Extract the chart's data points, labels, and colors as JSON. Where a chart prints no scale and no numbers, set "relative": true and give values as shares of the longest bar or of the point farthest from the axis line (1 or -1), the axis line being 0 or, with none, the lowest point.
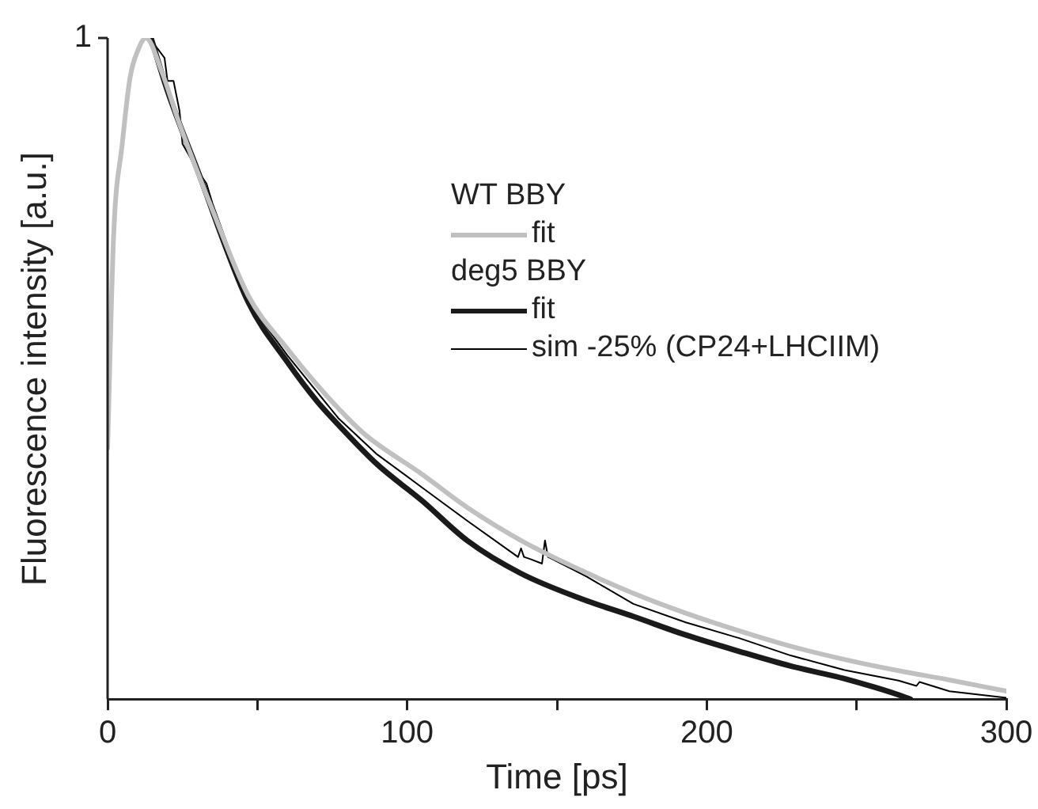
{
  "chart_data": {
    "type": "line",
    "xlabel": "Time [ps]",
    "ylabel": "Fluorescence intensity [a.u.]",
    "relative": true,
    "xlim": [
      0,
      300
    ],
    "xticks": [
      0,
      {
        "value": 50,
        "label": null
      },
      100,
      {
        "value": 150,
        "label": null
      },
      200,
      {
        "value": 250,
        "label": null
      },
      300
    ],
    "grid": false,
    "legend": "right",
    "marker": "none",
    "line_style": "solid",
    "annotations": [
      "1",
      "WT BBY",
      "deg5 BBY"
    ],
    "series": [
      {
        "name": "fit",
        "color": "#c0c0c0",
        "x": [
          0,
          2,
          4.9,
          7.5,
          10,
          12.8,
          18,
          24,
          35,
          47,
          60,
          70,
          77,
          86,
          105,
          120,
          138,
          158,
          175.5,
          193,
          211,
          228,
          246,
          264,
          281,
          300
        ],
        "values": [
          0.38,
          0.7,
          0.84,
          0.94,
          0.98,
          1,
          0.95,
          0.87,
          0.74,
          0.61,
          0.53,
          0.475,
          0.44,
          0.4,
          0.34,
          0.29,
          0.24,
          0.195,
          0.16,
          0.13,
          0.103,
          0.08,
          0.06,
          0.043,
          0.029,
          0.012
        ]
      },
      {
        "name": "fit",
        "color": "#1a1a1a",
        "x": [
          14.5,
          20,
          30,
          47,
          60,
          70,
          77,
          90,
          105,
          120,
          138,
          158,
          175.5,
          193,
          211,
          228,
          246,
          256,
          263,
          268
        ],
        "values": [
          1,
          0.92,
          0.8,
          0.6,
          0.51,
          0.45,
          0.415,
          0.355,
          0.3,
          0.24,
          0.19,
          0.152,
          0.125,
          0.097,
          0.072,
          0.05,
          0.031,
          0.018,
          0.008,
          0
        ]
      },
      {
        "name": "sim -25% (CP24+LHCIIM)",
        "color": "#000000",
        "x": [
          14,
          19,
          20,
          22,
          24,
          25,
          30,
          33,
          35,
          47,
          60,
          77,
          90,
          105,
          120,
          137,
          138,
          139,
          141,
          145,
          146,
          147,
          148,
          160,
          175.5,
          193,
          211,
          228,
          246,
          264,
          270,
          271,
          281,
          300
        ],
        "values": [
          1,
          0.97,
          0.935,
          0.935,
          0.89,
          0.84,
          0.8,
          0.78,
          0.75,
          0.6,
          0.52,
          0.425,
          0.37,
          0.32,
          0.27,
          0.215,
          0.228,
          0.215,
          0.212,
          0.205,
          0.24,
          0.215,
          0.213,
          0.185,
          0.144,
          0.116,
          0.092,
          0.066,
          0.044,
          0.028,
          0.02,
          0.026,
          0.012,
          0.002
        ]
      }
    ]
  }
}
